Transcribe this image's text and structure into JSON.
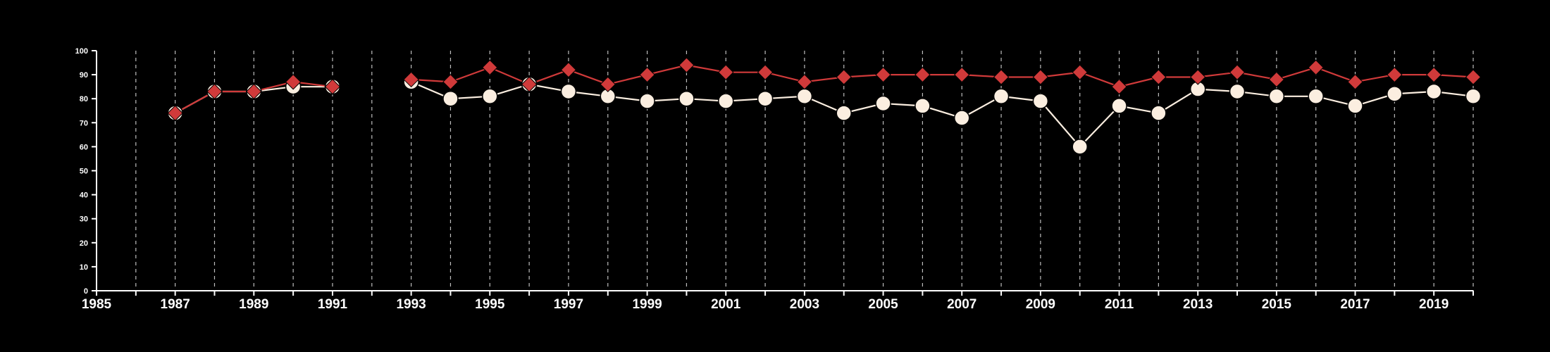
{
  "chart_data": {
    "type": "line",
    "title": "",
    "xlabel": "",
    "ylabel": "",
    "xlim": [
      1985,
      2020
    ],
    "ylim": [
      0,
      100
    ],
    "x_ticks": [
      1985,
      1987,
      1989,
      1991,
      1993,
      1995,
      1997,
      1999,
      2001,
      2003,
      2005,
      2007,
      2009,
      2011,
      2013,
      2015,
      2017,
      2019
    ],
    "y_ticks": [
      0,
      10,
      20,
      30,
      40,
      50,
      60,
      70,
      80,
      90,
      100
    ],
    "grid": "vertical dashed lines at each year",
    "legend": "none",
    "series": [
      {
        "color": "#fbeee0",
        "marker": "circle",
        "points": [
          [
            1987,
            74
          ],
          [
            1988,
            83
          ],
          [
            1989,
            83
          ],
          [
            1990,
            85
          ],
          [
            1991,
            85
          ],
          [
            1993,
            87
          ],
          [
            1994,
            80
          ],
          [
            1995,
            81
          ],
          [
            1996,
            86
          ],
          [
            1997,
            83
          ],
          [
            1998,
            81
          ],
          [
            1999,
            79
          ],
          [
            2000,
            80
          ],
          [
            2001,
            79
          ],
          [
            2002,
            80
          ],
          [
            2003,
            81
          ],
          [
            2004,
            74
          ],
          [
            2005,
            78
          ],
          [
            2006,
            77
          ],
          [
            2007,
            72
          ],
          [
            2008,
            81
          ],
          [
            2009,
            79
          ],
          [
            2010,
            60
          ],
          [
            2011,
            77
          ],
          [
            2012,
            74
          ],
          [
            2013,
            84
          ],
          [
            2014,
            83
          ],
          [
            2015,
            81
          ],
          [
            2016,
            81
          ],
          [
            2017,
            77
          ],
          [
            2018,
            82
          ],
          [
            2019,
            83
          ],
          [
            2020,
            81
          ]
        ]
      },
      {
        "color": "#d03a3a",
        "marker": "diamond",
        "points": [
          [
            1987,
            74
          ],
          [
            1988,
            83
          ],
          [
            1989,
            83
          ],
          [
            1990,
            87
          ],
          [
            1991,
            85
          ],
          [
            1993,
            88
          ],
          [
            1994,
            87
          ],
          [
            1995,
            93
          ],
          [
            1996,
            86
          ],
          [
            1997,
            92
          ],
          [
            1998,
            86
          ],
          [
            1999,
            90
          ],
          [
            2000,
            94
          ],
          [
            2001,
            91
          ],
          [
            2002,
            91
          ],
          [
            2003,
            87
          ],
          [
            2004,
            89
          ],
          [
            2005,
            90
          ],
          [
            2006,
            90
          ],
          [
            2007,
            90
          ],
          [
            2008,
            89
          ],
          [
            2009,
            89
          ],
          [
            2010,
            91
          ],
          [
            2011,
            85
          ],
          [
            2012,
            89
          ],
          [
            2013,
            89
          ],
          [
            2014,
            91
          ],
          [
            2015,
            88
          ],
          [
            2016,
            93
          ],
          [
            2017,
            87
          ],
          [
            2018,
            90
          ],
          [
            2019,
            90
          ],
          [
            2020,
            89
          ]
        ]
      }
    ]
  }
}
